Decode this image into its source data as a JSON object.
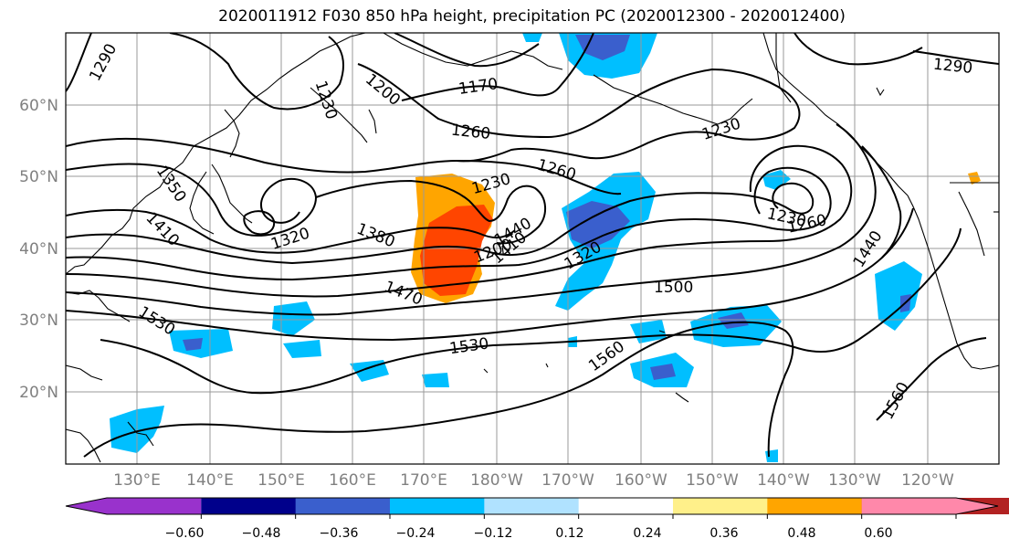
{
  "title": "2020011912 F030 850 hPa height, precipitation PC (2020012300 - 2020012400)",
  "lat_labels": [
    "60°N",
    "50°N",
    "40°N",
    "30°N",
    "20°N"
  ],
  "lon_labels": [
    "130°E",
    "140°E",
    "150°E",
    "160°E",
    "170°E",
    "180°W",
    "170°W",
    "160°W",
    "150°W",
    "140°W",
    "130°W",
    "120°W"
  ],
  "colorbar": {
    "colors": [
      "#9932cc",
      "#00008b",
      "#3a5fcd",
      "#00bfff",
      "#b0e2ff",
      "#ffffff",
      "#fff08a",
      "#ffa500",
      "#ff4500",
      "#b22222",
      "#ff88aa"
    ],
    "tick_labels": [
      "−0.60",
      "−0.48",
      "−0.36",
      "−0.24",
      "−0.12",
      "0.12",
      "0.24",
      "0.36",
      "0.48",
      "0.60"
    ]
  },
  "contour_labels": [
    "1290",
    "1230",
    "1200",
    "1170",
    "1290",
    "1260",
    "1230",
    "1260",
    "1350",
    "1320",
    "1230",
    "1410",
    "1440",
    "1380",
    "1200",
    "1410",
    "1320",
    "1230",
    "1260",
    "1440",
    "1560",
    "1470",
    "1500",
    "1530",
    "1530",
    "1560",
    "1560"
  ]
}
